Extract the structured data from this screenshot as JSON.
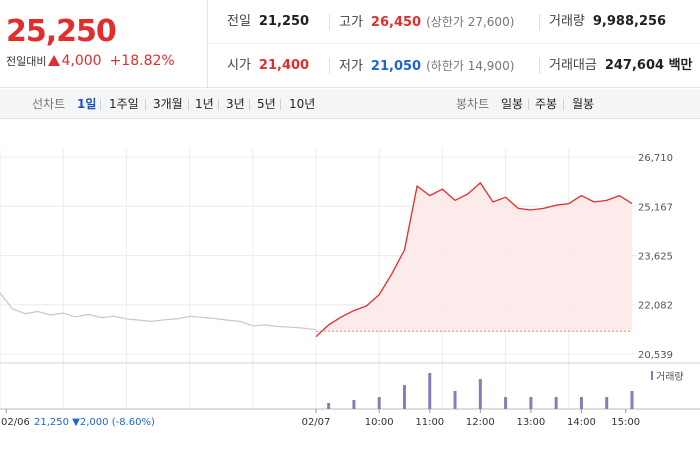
{
  "summary": {
    "price": "25,250",
    "change_label": "전일대비",
    "change_value": "4,000",
    "change_pct": "+18.82%"
  },
  "stats": {
    "prev_close": {
      "label": "전일",
      "value": "21,250"
    },
    "high": {
      "label": "고가",
      "value": "26,450",
      "sub": "(상한가 27,600)"
    },
    "volume": {
      "label": "거래량",
      "value": "9,988,256"
    },
    "open": {
      "label": "시가",
      "value": "21,400"
    },
    "low": {
      "label": "저가",
      "value": "21,050",
      "sub": "(하한가 14,900)"
    },
    "trade_value": {
      "label": "거래대금",
      "value": "247,604 백만"
    }
  },
  "line_tabs": {
    "title": "선차트",
    "items": [
      "1일",
      "1주일",
      "3개월",
      "1년",
      "3년",
      "5년",
      "10년"
    ],
    "active": 0
  },
  "candle_tabs": {
    "title": "봉차트",
    "items": [
      "일봉",
      "주봉",
      "월봉"
    ]
  },
  "colors": {
    "up": "#e12d2d",
    "down": "#1e64d2",
    "prev_day_line": "#c8c8c8",
    "volume": "#8b7bb8",
    "area_fill": "#fde7e7"
  },
  "chart_data": {
    "type": "line",
    "y_ticks": [
      "26,710",
      "25,167",
      "23,625",
      "22,082",
      "20,539"
    ],
    "y_tick_values": [
      26710,
      25167,
      23625,
      22082,
      20539
    ],
    "ylim": [
      20539,
      26710
    ],
    "base_price": 21250,
    "x_ticks": [
      "02/06",
      "02/07",
      "10:00",
      "11:00",
      "12:00",
      "13:00",
      "14:00",
      "15:00"
    ],
    "prev_day_info": {
      "value": "21,250",
      "change": "2,000",
      "pct": "(-8.60%)"
    },
    "volume_label": "거래량",
    "prev_day_series": {
      "x": [
        0,
        2,
        4,
        6,
        8,
        10,
        12,
        14,
        16,
        18,
        20,
        22,
        24,
        26,
        28,
        30,
        32,
        34,
        36,
        38,
        40,
        42,
        44,
        46,
        48,
        50
      ],
      "y": [
        22450,
        21950,
        21800,
        21870,
        21760,
        21820,
        21700,
        21780,
        21680,
        21720,
        21640,
        21600,
        21560,
        21610,
        21640,
        21720,
        21690,
        21650,
        21600,
        21560,
        21420,
        21450,
        21400,
        21380,
        21350,
        21300
      ]
    },
    "today_series": {
      "x": [
        50,
        52,
        54,
        56,
        58,
        60,
        62,
        64,
        66,
        68,
        70,
        72,
        74,
        76,
        78,
        80,
        82,
        84,
        86,
        88,
        90,
        92,
        94,
        96,
        98,
        100
      ],
      "y": [
        21080,
        21450,
        21700,
        21900,
        22050,
        22400,
        23050,
        23800,
        25800,
        25500,
        25700,
        25350,
        25550,
        25900,
        25300,
        25450,
        25100,
        25050,
        25100,
        25200,
        25250,
        25500,
        25300,
        25350,
        25500,
        25250
      ]
    },
    "volume": {
      "x": [
        52,
        56,
        60,
        64,
        68,
        72,
        76,
        80,
        84,
        88,
        92,
        96,
        100
      ],
      "y": [
        1,
        1.5,
        2,
        4,
        6,
        3,
        5,
        2,
        2,
        2,
        2,
        2,
        3
      ]
    }
  }
}
